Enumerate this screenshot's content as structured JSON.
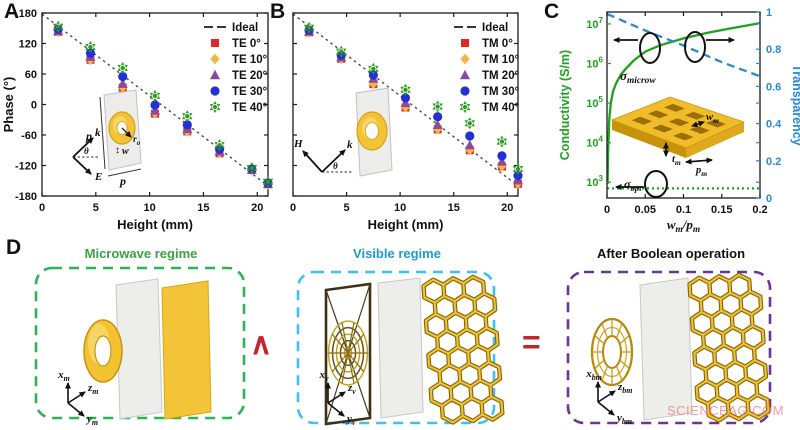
{
  "panel_labels": {
    "a": "A",
    "b": "B",
    "c": "C",
    "d": "D"
  },
  "chart_data": [
    {
      "id": "A",
      "type": "scatter",
      "xlabel": "Height (mm)",
      "ylabel": "Phase (°)",
      "xlim": [
        0,
        21
      ],
      "ylim": [
        -180,
        180
      ],
      "xticks": [
        0,
        5,
        10,
        15,
        20
      ],
      "yticks": [
        -180,
        -120,
        -60,
        0,
        60,
        120,
        180
      ],
      "show_ytick_labels": true,
      "grid": false,
      "legend_position": "top-right",
      "ideal": {
        "label": "Ideal",
        "x": [
          0,
          21
        ],
        "y": [
          178,
          -160
        ],
        "color": "#4a4a4a"
      },
      "heights": [
        1.5,
        4.5,
        7.5,
        10.5,
        13.5,
        16.5,
        19.5,
        21
      ],
      "series": [
        {
          "name": "TE 0°",
          "marker": "square",
          "color": "#e42528",
          "values": [
            143,
            88,
            33,
            -18,
            -53,
            -96,
            -129,
            -157
          ]
        },
        {
          "name": "TE 10°",
          "marker": "diamond",
          "color": "#f0b83e",
          "values": [
            143,
            88,
            34,
            -17,
            -53,
            -95,
            -129,
            -157
          ]
        },
        {
          "name": "TE 20°",
          "marker": "triangle",
          "color": "#8a4b9e",
          "values": [
            145,
            94,
            41,
            -12,
            -48,
            -92,
            -128,
            -156
          ]
        },
        {
          "name": "TE 30°",
          "marker": "circle",
          "color": "#2330d2",
          "values": [
            148,
            101,
            55,
            -1,
            -40,
            -88,
            -127,
            -155
          ]
        },
        {
          "name": "TE 40°",
          "marker": "hexagram",
          "color": "#2f9b21",
          "values": [
            153,
            113,
            72,
            17,
            -23,
            -80,
            -125,
            -152
          ]
        }
      ],
      "inset": {
        "p_left": "p",
        "p_bottom": "p",
        "r_label": [
          [
            "r",
            "o"
          ]
        ],
        "w_label": "w",
        "updown": "↕",
        "k": "k",
        "E": "E",
        "theta": "θ"
      }
    },
    {
      "id": "B",
      "type": "scatter",
      "xlabel": "Height (mm)",
      "ylabel": "",
      "xlim": [
        0,
        21
      ],
      "ylim": [
        -180,
        180
      ],
      "xticks": [
        0,
        5,
        10,
        15,
        20
      ],
      "yticks": [
        -180,
        -120,
        -60,
        0,
        60,
        120,
        180
      ],
      "show_ytick_labels": false,
      "grid": false,
      "legend_position": "top-right",
      "ideal": {
        "label": "Ideal",
        "x": [
          0,
          21
        ],
        "y": [
          178,
          -160
        ],
        "color": "#4a4a4a"
      },
      "heights": [
        1.5,
        4.5,
        7.5,
        10.5,
        13.5,
        16.5,
        19.5,
        21
      ],
      "series": [
        {
          "name": "TM 0°",
          "marker": "square",
          "color": "#e42528",
          "values": [
            142,
            90,
            40,
            -6,
            -49,
            -90,
            -122,
            -156
          ]
        },
        {
          "name": "TM 10°",
          "marker": "diamond",
          "color": "#f0b83e",
          "values": [
            142,
            90,
            41,
            -5,
            -48,
            -89,
            -121,
            -155
          ]
        },
        {
          "name": "TM 20°",
          "marker": "triangle",
          "color": "#8a4b9e",
          "values": [
            144,
            93,
            51,
            3,
            -40,
            -80,
            -112,
            -149
          ]
        },
        {
          "name": "TM 30°",
          "marker": "circle",
          "color": "#2330d2",
          "values": [
            146,
            97,
            58,
            13,
            -24,
            -62,
            -101,
            -140
          ]
        },
        {
          "name": "TM 40°",
          "marker": "hexagram",
          "color": "#2f9b21",
          "values": [
            151,
            104,
            70,
            29,
            -4,
            -37,
            -73,
            -127
          ]
        }
      ],
      "inset": {
        "H": "H",
        "k": "k",
        "theta": "θ"
      }
    },
    {
      "id": "C",
      "type": "line",
      "xlabel_parts": [
        [
          "w",
          "m"
        ],
        [
          "/",
          ""
        ],
        [
          "p",
          "m"
        ]
      ],
      "ylabel_left": "Conductivity (S/m)",
      "ylabel_right": "Transparency",
      "axis_left_color": "#1ea11e",
      "axis_right_color": "#2389d8",
      "xlim": [
        0,
        0.2
      ],
      "xticks": [
        0,
        0.05,
        0.1,
        0.15,
        0.2
      ],
      "xtick_labels": [
        "0",
        "0.05",
        "0.1",
        "0.15",
        "0.2"
      ],
      "ylim_left_log": [
        400,
        20000000
      ],
      "ytick_exponents_left": [
        3,
        4,
        5,
        6,
        7
      ],
      "ylim_right": [
        0,
        1
      ],
      "yticks_right": [
        0,
        0.2,
        0.4,
        0.6,
        0.8,
        1
      ],
      "series": [
        {
          "name_parts": [
            [
              "σ",
              "microw"
            ]
          ],
          "style": "solid",
          "axis": "left",
          "color": "#1ea11e",
          "x": [
            0.0008,
            0.0015,
            0.003,
            0.005,
            0.008,
            0.012,
            0.018,
            0.025,
            0.035,
            0.05,
            0.07,
            0.1,
            0.13,
            0.16,
            0.2
          ],
          "y": [
            900,
            6000,
            40000,
            100000,
            200000,
            320000,
            520000,
            750000,
            1200000,
            2000000,
            2900000,
            4300000,
            5900000,
            7600000,
            10500000
          ]
        },
        {
          "name": "Transparency",
          "style": "dashed",
          "axis": "right",
          "color": "#2f87cf",
          "x": [
            0,
            0.05,
            0.1,
            0.15,
            0.2
          ],
          "y": [
            0.99,
            0.9,
            0.82,
            0.73,
            0.655
          ]
        },
        {
          "name_parts": [
            [
              "σ",
              "opt"
            ]
          ],
          "style": "dotted",
          "axis": "left",
          "color": "#1ea11e",
          "x": [
            0,
            0.2
          ],
          "y": [
            700,
            700
          ]
        }
      ],
      "inset_labels": {
        "w": [
          [
            "w",
            "m"
          ]
        ],
        "t": [
          [
            "t",
            "m"
          ]
        ],
        "p": [
          [
            "p",
            "m"
          ]
        ]
      }
    }
  ],
  "panel_d": {
    "boxes": [
      {
        "title": "Microwave regime",
        "border_color": "#2eb353",
        "title_color": "#3aa048",
        "axis_labels": [
          [
            "x",
            "m"
          ],
          [
            "z",
            "m"
          ],
          [
            "y",
            "m"
          ]
        ]
      },
      {
        "title": "Visible regime",
        "border_color": "#3fc1f0",
        "title_color": "#1d9ad6",
        "axis_labels": [
          [
            "x",
            "v"
          ],
          [
            "z",
            "v"
          ],
          [
            "y",
            "v"
          ]
        ]
      },
      {
        "title": "After Boolean operation",
        "border_color": "#6a3596",
        "title_color": "#111111",
        "axis_labels": [
          [
            "x",
            "bm"
          ],
          [
            "z",
            "bm"
          ],
          [
            "y",
            "bm"
          ]
        ]
      }
    ],
    "and_symbol": "∧",
    "equals_symbol": "=",
    "symbol_color": "#c1272d"
  },
  "watermark": "SCIENCEAG.COM"
}
